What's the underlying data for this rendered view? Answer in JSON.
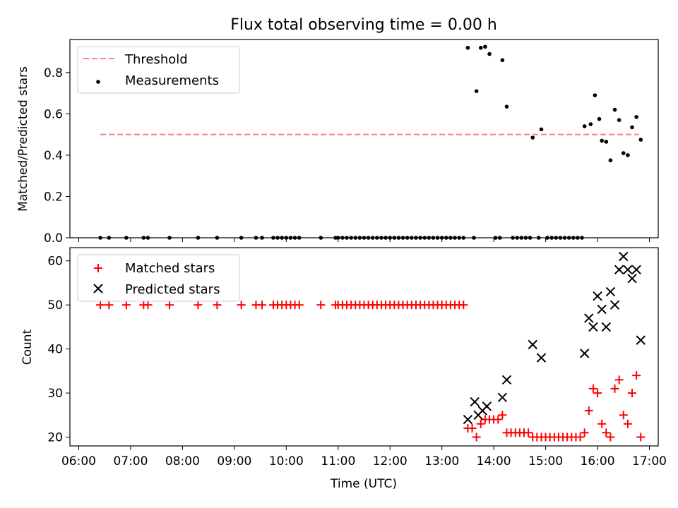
{
  "chart_data": [
    {
      "type": "scatter",
      "title": "Flux total observing time = 0.00 h",
      "xlabel": "",
      "ylabel": "Matched/Predicted stars",
      "xlim": [
        "06:00",
        "17:00"
      ],
      "ylim": [
        0,
        0.96
      ],
      "xticks": [
        "06:00",
        "07:00",
        "08:00",
        "09:00",
        "10:00",
        "11:00",
        "12:00",
        "13:00",
        "14:00",
        "15:00",
        "16:00",
        "17:00"
      ],
      "yticks": [
        "0.0",
        "0.2",
        "0.4",
        "0.6",
        "0.8"
      ],
      "yticks_values": [
        0,
        0.2,
        0.4,
        0.6,
        0.8
      ],
      "legend_position": "upper-left",
      "threshold": {
        "name": "Threshold",
        "value": 0.5,
        "x_range": [
          "06:25",
          "16:48"
        ],
        "color": "#ff8080",
        "style": "dashed"
      },
      "series": [
        {
          "name": "Measurements",
          "color": "#000000",
          "marker": "dot",
          "points": [
            [
              "06:25",
              0
            ],
            [
              "06:35",
              0
            ],
            [
              "06:55",
              0
            ],
            [
              "07:15",
              0
            ],
            [
              "07:20",
              0
            ],
            [
              "07:45",
              0
            ],
            [
              "08:18",
              0
            ],
            [
              "08:40",
              0
            ],
            [
              "09:08",
              0
            ],
            [
              "09:25",
              0
            ],
            [
              "09:32",
              0
            ],
            [
              "09:45",
              0
            ],
            [
              "09:50",
              0
            ],
            [
              "09:55",
              0
            ],
            [
              "10:00",
              0
            ],
            [
              "10:05",
              0
            ],
            [
              "10:10",
              0
            ],
            [
              "10:15",
              0
            ],
            [
              "10:40",
              0
            ],
            [
              "10:57",
              0
            ],
            [
              "11:00",
              0
            ],
            [
              "11:05",
              0
            ],
            [
              "11:10",
              0
            ],
            [
              "11:15",
              0
            ],
            [
              "11:20",
              0
            ],
            [
              "11:25",
              0
            ],
            [
              "11:30",
              0
            ],
            [
              "11:35",
              0
            ],
            [
              "11:40",
              0
            ],
            [
              "11:45",
              0
            ],
            [
              "11:50",
              0
            ],
            [
              "11:55",
              0
            ],
            [
              "12:00",
              0
            ],
            [
              "12:05",
              0
            ],
            [
              "12:10",
              0
            ],
            [
              "12:15",
              0
            ],
            [
              "12:20",
              0
            ],
            [
              "12:25",
              0
            ],
            [
              "12:30",
              0
            ],
            [
              "12:35",
              0
            ],
            [
              "12:40",
              0
            ],
            [
              "12:45",
              0
            ],
            [
              "12:50",
              0
            ],
            [
              "12:55",
              0
            ],
            [
              "13:00",
              0
            ],
            [
              "13:05",
              0
            ],
            [
              "13:10",
              0
            ],
            [
              "13:15",
              0
            ],
            [
              "13:20",
              0
            ],
            [
              "13:25",
              0
            ],
            [
              "13:30",
              0.92
            ],
            [
              "13:37",
              0
            ],
            [
              "13:40",
              0.71
            ],
            [
              "13:45",
              0.92
            ],
            [
              "13:50",
              0.925
            ],
            [
              "13:55",
              0.89
            ],
            [
              "14:02",
              0
            ],
            [
              "14:07",
              0
            ],
            [
              "14:10",
              0.86
            ],
            [
              "14:15",
              0.635
            ],
            [
              "14:22",
              0
            ],
            [
              "14:27",
              0
            ],
            [
              "14:32",
              0
            ],
            [
              "14:37",
              0
            ],
            [
              "14:42",
              0
            ],
            [
              "14:45",
              0.485
            ],
            [
              "14:52",
              0
            ],
            [
              "14:55",
              0.525
            ],
            [
              "15:02",
              0
            ],
            [
              "15:07",
              0
            ],
            [
              "15:12",
              0
            ],
            [
              "15:17",
              0
            ],
            [
              "15:22",
              0
            ],
            [
              "15:27",
              0
            ],
            [
              "15:32",
              0
            ],
            [
              "15:37",
              0
            ],
            [
              "15:42",
              0
            ],
            [
              "15:45",
              0.54
            ],
            [
              "15:52",
              0.55
            ],
            [
              "15:57",
              0.69
            ],
            [
              "16:02",
              0.575
            ],
            [
              "16:05",
              0.47
            ],
            [
              "16:10",
              0.465
            ],
            [
              "16:15",
              0.375
            ],
            [
              "16:20",
              0.62
            ],
            [
              "16:25",
              0.57
            ],
            [
              "16:30",
              0.41
            ],
            [
              "16:35",
              0.4
            ],
            [
              "16:40",
              0.535
            ],
            [
              "16:45",
              0.585
            ],
            [
              "16:50",
              0.475
            ]
          ]
        }
      ]
    },
    {
      "type": "scatter",
      "title": "",
      "xlabel": "Time (UTC)",
      "ylabel": "Count",
      "xlim": [
        "06:00",
        "17:00"
      ],
      "ylim": [
        18,
        63
      ],
      "xticks": [
        "06:00",
        "07:00",
        "08:00",
        "09:00",
        "10:00",
        "11:00",
        "12:00",
        "13:00",
        "14:00",
        "15:00",
        "16:00",
        "17:00"
      ],
      "yticks": [
        "20",
        "30",
        "40",
        "50",
        "60"
      ],
      "yticks_values": [
        20,
        30,
        40,
        50,
        60
      ],
      "legend_position": "upper-left",
      "series": [
        {
          "name": "Matched stars",
          "color": "#ff0000",
          "marker": "plus",
          "points": [
            [
              "06:25",
              50
            ],
            [
              "06:35",
              50
            ],
            [
              "06:55",
              50
            ],
            [
              "07:15",
              50
            ],
            [
              "07:20",
              50
            ],
            [
              "07:45",
              50
            ],
            [
              "08:18",
              50
            ],
            [
              "08:40",
              50
            ],
            [
              "09:08",
              50
            ],
            [
              "09:25",
              50
            ],
            [
              "09:32",
              50
            ],
            [
              "09:45",
              50
            ],
            [
              "09:50",
              50
            ],
            [
              "09:55",
              50
            ],
            [
              "10:00",
              50
            ],
            [
              "10:05",
              50
            ],
            [
              "10:10",
              50
            ],
            [
              "10:15",
              50
            ],
            [
              "10:40",
              50
            ],
            [
              "10:57",
              50
            ],
            [
              "11:00",
              50
            ],
            [
              "11:05",
              50
            ],
            [
              "11:10",
              50
            ],
            [
              "11:15",
              50
            ],
            [
              "11:20",
              50
            ],
            [
              "11:25",
              50
            ],
            [
              "11:30",
              50
            ],
            [
              "11:35",
              50
            ],
            [
              "11:40",
              50
            ],
            [
              "11:45",
              50
            ],
            [
              "11:50",
              50
            ],
            [
              "11:55",
              50
            ],
            [
              "12:00",
              50
            ],
            [
              "12:05",
              50
            ],
            [
              "12:10",
              50
            ],
            [
              "12:15",
              50
            ],
            [
              "12:20",
              50
            ],
            [
              "12:25",
              50
            ],
            [
              "12:30",
              50
            ],
            [
              "12:35",
              50
            ],
            [
              "12:40",
              50
            ],
            [
              "12:45",
              50
            ],
            [
              "12:50",
              50
            ],
            [
              "12:55",
              50
            ],
            [
              "13:00",
              50
            ],
            [
              "13:05",
              50
            ],
            [
              "13:10",
              50
            ],
            [
              "13:15",
              50
            ],
            [
              "13:20",
              50
            ],
            [
              "13:25",
              50
            ],
            [
              "13:30",
              22
            ],
            [
              "13:35",
              22
            ],
            [
              "13:40",
              20
            ],
            [
              "13:45",
              23
            ],
            [
              "13:50",
              24
            ],
            [
              "13:55",
              24
            ],
            [
              "14:00",
              24
            ],
            [
              "14:05",
              24
            ],
            [
              "14:10",
              25
            ],
            [
              "14:15",
              21
            ],
            [
              "14:20",
              21
            ],
            [
              "14:25",
              21
            ],
            [
              "14:30",
              21
            ],
            [
              "14:35",
              21
            ],
            [
              "14:40",
              21
            ],
            [
              "14:45",
              20
            ],
            [
              "14:50",
              20
            ],
            [
              "14:55",
              20
            ],
            [
              "15:00",
              20
            ],
            [
              "15:05",
              20
            ],
            [
              "15:10",
              20
            ],
            [
              "15:15",
              20
            ],
            [
              "15:20",
              20
            ],
            [
              "15:25",
              20
            ],
            [
              "15:30",
              20
            ],
            [
              "15:35",
              20
            ],
            [
              "15:40",
              20
            ],
            [
              "15:45",
              21
            ],
            [
              "15:50",
              26
            ],
            [
              "15:55",
              31
            ],
            [
              "16:00",
              30
            ],
            [
              "16:05",
              23
            ],
            [
              "16:10",
              21
            ],
            [
              "16:15",
              20
            ],
            [
              "16:20",
              31
            ],
            [
              "16:25",
              33
            ],
            [
              "16:30",
              25
            ],
            [
              "16:35",
              23
            ],
            [
              "16:40",
              30
            ],
            [
              "16:45",
              34
            ],
            [
              "16:50",
              20
            ]
          ]
        },
        {
          "name": "Predicted stars",
          "color": "#000000",
          "marker": "x",
          "points": [
            [
              "13:30",
              24
            ],
            [
              "13:38",
              28
            ],
            [
              "13:42",
              25
            ],
            [
              "13:47",
              26
            ],
            [
              "13:52",
              27
            ],
            [
              "14:10",
              29
            ],
            [
              "14:15",
              33
            ],
            [
              "14:45",
              41
            ],
            [
              "14:55",
              38
            ],
            [
              "15:45",
              39
            ],
            [
              "15:50",
              47
            ],
            [
              "15:55",
              45
            ],
            [
              "16:00",
              52
            ],
            [
              "16:05",
              49
            ],
            [
              "16:10",
              45
            ],
            [
              "16:15",
              53
            ],
            [
              "16:20",
              50
            ],
            [
              "16:25",
              58
            ],
            [
              "16:30",
              61
            ],
            [
              "16:35",
              58
            ],
            [
              "16:40",
              56
            ],
            [
              "16:45",
              58
            ],
            [
              "16:50",
              42
            ]
          ]
        }
      ]
    }
  ]
}
